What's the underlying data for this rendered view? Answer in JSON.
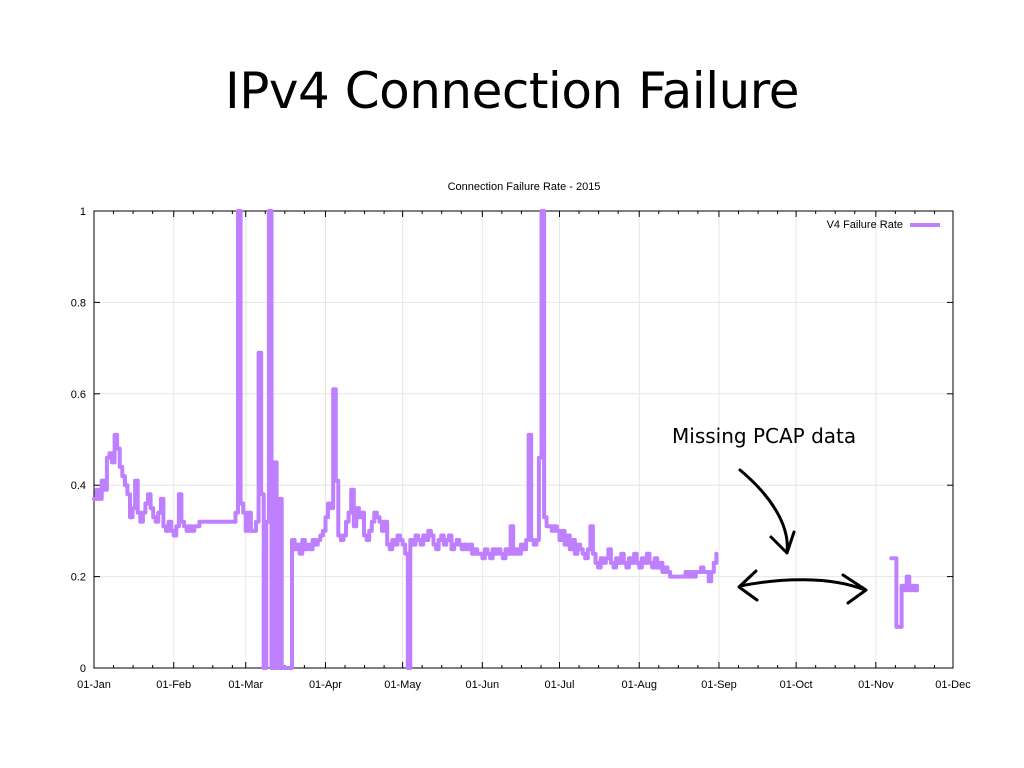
{
  "slide": {
    "title": "IPv4 Connection Failure"
  },
  "annotation": {
    "text": "Missing PCAP data"
  },
  "colors": {
    "series": "#bf80ff",
    "grid": "#e6e6e6",
    "axis": "#000000"
  },
  "chart_data": {
    "type": "line",
    "title": "Connection Failure Rate - 2015",
    "xlabel": "",
    "ylabel": "",
    "x_ticks": [
      "01-Jan",
      "01-Feb",
      "01-Mar",
      "01-Apr",
      "01-May",
      "01-Jun",
      "01-Jul",
      "01-Aug",
      "01-Sep",
      "01-Oct",
      "01-Nov",
      "01-Dec"
    ],
    "y_ticks": [
      "0",
      "0.2",
      "0.4",
      "0.6",
      "0.8",
      "1"
    ],
    "ylim": [
      0,
      1
    ],
    "xlim": [
      "2015-01-01",
      "2015-12-01"
    ],
    "grid": true,
    "legend": "top-right",
    "series": [
      {
        "name": "V4 Failure Rate",
        "points": [
          [
            "2015-01-01",
            0.37
          ],
          [
            "2015-01-02",
            0.39
          ],
          [
            "2015-01-03",
            0.37
          ],
          [
            "2015-01-04",
            0.41
          ],
          [
            "2015-01-05",
            0.39
          ],
          [
            "2015-01-06",
            0.46
          ],
          [
            "2015-01-07",
            0.47
          ],
          [
            "2015-01-08",
            0.45
          ],
          [
            "2015-01-09",
            0.51
          ],
          [
            "2015-01-10",
            0.48
          ],
          [
            "2015-01-11",
            0.44
          ],
          [
            "2015-01-12",
            0.42
          ],
          [
            "2015-01-13",
            0.4
          ],
          [
            "2015-01-14",
            0.38
          ],
          [
            "2015-01-15",
            0.33
          ],
          [
            "2015-01-16",
            0.35
          ],
          [
            "2015-01-17",
            0.41
          ],
          [
            "2015-01-18",
            0.34
          ],
          [
            "2015-01-19",
            0.32
          ],
          [
            "2015-01-20",
            0.34
          ],
          [
            "2015-01-21",
            0.36
          ],
          [
            "2015-01-22",
            0.38
          ],
          [
            "2015-01-23",
            0.35
          ],
          [
            "2015-01-24",
            0.33
          ],
          [
            "2015-01-25",
            0.32
          ],
          [
            "2015-01-26",
            0.34
          ],
          [
            "2015-01-27",
            0.37
          ],
          [
            "2015-01-28",
            0.31
          ],
          [
            "2015-01-29",
            0.3
          ],
          [
            "2015-01-30",
            0.32
          ],
          [
            "2015-01-31",
            0.3
          ],
          [
            "2015-02-01",
            0.29
          ],
          [
            "2015-02-02",
            0.31
          ],
          [
            "2015-02-03",
            0.38
          ],
          [
            "2015-02-04",
            0.32
          ],
          [
            "2015-02-05",
            0.31
          ],
          [
            "2015-02-06",
            0.3
          ],
          [
            "2015-02-07",
            0.31
          ],
          [
            "2015-02-08",
            0.3
          ],
          [
            "2015-02-09",
            0.31
          ],
          [
            "2015-02-10",
            0.31
          ],
          [
            "2015-02-11",
            0.32
          ],
          [
            "2015-02-12",
            0.32
          ],
          [
            "2015-02-13",
            0.32
          ],
          [
            "2015-02-14",
            0.32
          ],
          [
            "2015-02-15",
            0.32
          ],
          [
            "2015-02-16",
            0.32
          ],
          [
            "2015-02-17",
            0.32
          ],
          [
            "2015-02-18",
            0.32
          ],
          [
            "2015-02-19",
            0.32
          ],
          [
            "2015-02-20",
            0.32
          ],
          [
            "2015-02-21",
            0.32
          ],
          [
            "2015-02-22",
            0.32
          ],
          [
            "2015-02-23",
            0.32
          ],
          [
            "2015-02-24",
            0.32
          ],
          [
            "2015-02-25",
            0.34
          ],
          [
            "2015-02-26",
            1.0
          ],
          [
            "2015-02-27",
            0.36
          ],
          [
            "2015-02-28",
            0.34
          ],
          [
            "2015-03-01",
            0.3
          ],
          [
            "2015-03-02",
            0.34
          ],
          [
            "2015-03-03",
            0.3
          ],
          [
            "2015-03-04",
            0.3
          ],
          [
            "2015-03-05",
            0.32
          ],
          [
            "2015-03-06",
            0.69
          ],
          [
            "2015-03-07",
            0.38
          ],
          [
            "2015-03-08",
            0.0
          ],
          [
            "2015-03-09",
            0.32
          ],
          [
            "2015-03-10",
            1.0
          ],
          [
            "2015-03-11",
            0.0
          ],
          [
            "2015-03-12",
            0.45
          ],
          [
            "2015-03-13",
            0.0
          ],
          [
            "2015-03-14",
            0.37
          ],
          [
            "2015-03-15",
            0.0
          ],
          [
            "2015-03-16",
            0.0
          ],
          [
            "2015-03-17",
            0.0
          ],
          [
            "2015-03-18",
            0.0
          ],
          [
            "2015-03-19",
            0.28
          ],
          [
            "2015-03-20",
            0.26
          ],
          [
            "2015-03-21",
            0.27
          ],
          [
            "2015-03-22",
            0.25
          ],
          [
            "2015-03-23",
            0.28
          ],
          [
            "2015-03-24",
            0.26
          ],
          [
            "2015-03-25",
            0.27
          ],
          [
            "2015-03-26",
            0.26
          ],
          [
            "2015-03-27",
            0.28
          ],
          [
            "2015-03-28",
            0.27
          ],
          [
            "2015-03-29",
            0.28
          ],
          [
            "2015-03-30",
            0.29
          ],
          [
            "2015-03-31",
            0.3
          ],
          [
            "2015-04-01",
            0.33
          ],
          [
            "2015-04-02",
            0.36
          ],
          [
            "2015-04-03",
            0.35
          ],
          [
            "2015-04-04",
            0.61
          ],
          [
            "2015-04-05",
            0.41
          ],
          [
            "2015-04-06",
            0.29
          ],
          [
            "2015-04-07",
            0.28
          ],
          [
            "2015-04-08",
            0.29
          ],
          [
            "2015-04-09",
            0.32
          ],
          [
            "2015-04-10",
            0.34
          ],
          [
            "2015-04-11",
            0.39
          ],
          [
            "2015-04-12",
            0.31
          ],
          [
            "2015-04-13",
            0.35
          ],
          [
            "2015-04-14",
            0.33
          ],
          [
            "2015-04-15",
            0.34
          ],
          [
            "2015-04-16",
            0.29
          ],
          [
            "2015-04-17",
            0.28
          ],
          [
            "2015-04-18",
            0.3
          ],
          [
            "2015-04-19",
            0.32
          ],
          [
            "2015-04-20",
            0.34
          ],
          [
            "2015-04-21",
            0.33
          ],
          [
            "2015-04-22",
            0.32
          ],
          [
            "2015-04-23",
            0.3
          ],
          [
            "2015-04-24",
            0.32
          ],
          [
            "2015-04-25",
            0.27
          ],
          [
            "2015-04-26",
            0.26
          ],
          [
            "2015-04-27",
            0.28
          ],
          [
            "2015-04-28",
            0.27
          ],
          [
            "2015-04-29",
            0.29
          ],
          [
            "2015-04-30",
            0.28
          ],
          [
            "2015-05-01",
            0.27
          ],
          [
            "2015-05-02",
            0.25
          ],
          [
            "2015-05-03",
            0.0
          ],
          [
            "2015-05-04",
            0.28
          ],
          [
            "2015-05-05",
            0.27
          ],
          [
            "2015-05-06",
            0.29
          ],
          [
            "2015-05-07",
            0.28
          ],
          [
            "2015-05-08",
            0.27
          ],
          [
            "2015-05-09",
            0.29
          ],
          [
            "2015-05-10",
            0.28
          ],
          [
            "2015-05-11",
            0.3
          ],
          [
            "2015-05-12",
            0.29
          ],
          [
            "2015-05-13",
            0.27
          ],
          [
            "2015-05-14",
            0.26
          ],
          [
            "2015-05-15",
            0.28
          ],
          [
            "2015-05-16",
            0.29
          ],
          [
            "2015-05-17",
            0.27
          ],
          [
            "2015-05-18",
            0.28
          ],
          [
            "2015-05-19",
            0.29
          ],
          [
            "2015-05-20",
            0.26
          ],
          [
            "2015-05-21",
            0.27
          ],
          [
            "2015-05-22",
            0.28
          ],
          [
            "2015-05-23",
            0.27
          ],
          [
            "2015-05-24",
            0.26
          ],
          [
            "2015-05-25",
            0.27
          ],
          [
            "2015-05-26",
            0.26
          ],
          [
            "2015-05-27",
            0.27
          ],
          [
            "2015-05-28",
            0.25
          ],
          [
            "2015-05-29",
            0.26
          ],
          [
            "2015-05-30",
            0.25
          ],
          [
            "2015-05-31",
            0.25
          ],
          [
            "2015-06-01",
            0.24
          ],
          [
            "2015-06-02",
            0.26
          ],
          [
            "2015-06-03",
            0.25
          ],
          [
            "2015-06-04",
            0.24
          ],
          [
            "2015-06-05",
            0.26
          ],
          [
            "2015-06-06",
            0.25
          ],
          [
            "2015-06-07",
            0.26
          ],
          [
            "2015-06-08",
            0.25
          ],
          [
            "2015-06-09",
            0.24
          ],
          [
            "2015-06-10",
            0.26
          ],
          [
            "2015-06-11",
            0.25
          ],
          [
            "2015-06-12",
            0.31
          ],
          [
            "2015-06-13",
            0.25
          ],
          [
            "2015-06-14",
            0.26
          ],
          [
            "2015-06-15",
            0.25
          ],
          [
            "2015-06-16",
            0.27
          ],
          [
            "2015-06-17",
            0.26
          ],
          [
            "2015-06-18",
            0.28
          ],
          [
            "2015-06-19",
            0.51
          ],
          [
            "2015-06-20",
            0.28
          ],
          [
            "2015-06-21",
            0.27
          ],
          [
            "2015-06-22",
            0.28
          ],
          [
            "2015-06-23",
            0.46
          ],
          [
            "2015-06-24",
            1.0
          ],
          [
            "2015-06-25",
            0.33
          ],
          [
            "2015-06-26",
            0.31
          ],
          [
            "2015-06-27",
            0.31
          ],
          [
            "2015-06-28",
            0.3
          ],
          [
            "2015-06-29",
            0.31
          ],
          [
            "2015-06-30",
            0.3
          ],
          [
            "2015-07-01",
            0.28
          ],
          [
            "2015-07-02",
            0.3
          ],
          [
            "2015-07-03",
            0.27
          ],
          [
            "2015-07-04",
            0.29
          ],
          [
            "2015-07-05",
            0.26
          ],
          [
            "2015-07-06",
            0.28
          ],
          [
            "2015-07-07",
            0.25
          ],
          [
            "2015-07-08",
            0.27
          ],
          [
            "2015-07-09",
            0.26
          ],
          [
            "2015-07-10",
            0.25
          ],
          [
            "2015-07-11",
            0.24
          ],
          [
            "2015-07-12",
            0.26
          ],
          [
            "2015-07-13",
            0.31
          ],
          [
            "2015-07-14",
            0.25
          ],
          [
            "2015-07-15",
            0.23
          ],
          [
            "2015-07-16",
            0.22
          ],
          [
            "2015-07-17",
            0.24
          ],
          [
            "2015-07-18",
            0.23
          ],
          [
            "2015-07-19",
            0.24
          ],
          [
            "2015-07-20",
            0.26
          ],
          [
            "2015-07-21",
            0.23
          ],
          [
            "2015-07-22",
            0.22
          ],
          [
            "2015-07-23",
            0.24
          ],
          [
            "2015-07-24",
            0.23
          ],
          [
            "2015-07-25",
            0.25
          ],
          [
            "2015-07-26",
            0.23
          ],
          [
            "2015-07-27",
            0.22
          ],
          [
            "2015-07-28",
            0.24
          ],
          [
            "2015-07-29",
            0.23
          ],
          [
            "2015-07-30",
            0.25
          ],
          [
            "2015-07-31",
            0.23
          ],
          [
            "2015-08-01",
            0.22
          ],
          [
            "2015-08-02",
            0.24
          ],
          [
            "2015-08-03",
            0.23
          ],
          [
            "2015-08-04",
            0.25
          ],
          [
            "2015-08-05",
            0.23
          ],
          [
            "2015-08-06",
            0.22
          ],
          [
            "2015-08-07",
            0.24
          ],
          [
            "2015-08-08",
            0.22
          ],
          [
            "2015-08-09",
            0.23
          ],
          [
            "2015-08-10",
            0.21
          ],
          [
            "2015-08-11",
            0.22
          ],
          [
            "2015-08-12",
            0.21
          ],
          [
            "2015-08-13",
            0.2
          ],
          [
            "2015-08-14",
            0.2
          ],
          [
            "2015-08-15",
            0.2
          ],
          [
            "2015-08-16",
            0.2
          ],
          [
            "2015-08-17",
            0.2
          ],
          [
            "2015-08-18",
            0.2
          ],
          [
            "2015-08-19",
            0.21
          ],
          [
            "2015-08-20",
            0.2
          ],
          [
            "2015-08-21",
            0.21
          ],
          [
            "2015-08-22",
            0.2
          ],
          [
            "2015-08-23",
            0.21
          ],
          [
            "2015-08-24",
            0.21
          ],
          [
            "2015-08-25",
            0.22
          ],
          [
            "2015-08-26",
            0.21
          ],
          [
            "2015-08-27",
            0.21
          ],
          [
            "2015-08-28",
            0.19
          ],
          [
            "2015-08-29",
            0.21
          ],
          [
            "2015-08-30",
            0.23
          ],
          [
            "2015-08-31",
            0.25
          ],
          [
            null,
            null
          ],
          [
            "2015-11-07",
            0.24
          ],
          [
            "2015-11-08",
            0.24
          ],
          [
            "2015-11-09",
            0.09
          ],
          [
            "2015-11-10",
            0.09
          ],
          [
            "2015-11-11",
            0.18
          ],
          [
            "2015-11-12",
            0.17
          ],
          [
            "2015-11-13",
            0.2
          ],
          [
            "2015-11-14",
            0.17
          ],
          [
            "2015-11-15",
            0.18
          ],
          [
            "2015-11-16",
            0.17
          ],
          [
            "2015-11-17",
            0.18
          ]
        ]
      }
    ]
  }
}
